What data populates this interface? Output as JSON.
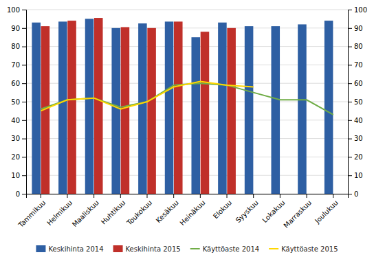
{
  "chart_data": {
    "type": "bar",
    "categories": [
      "Tammikuu",
      "Helmikuu",
      "Maaliskuu",
      "Huhtikuu",
      "Toukokuu",
      "Kesäkuu",
      "Heinäkuu",
      "Elokuu",
      "Syyskuu",
      "Lokakuu",
      "Marraskuu",
      "Joulukuu"
    ],
    "series": [
      {
        "name": "Keskihinta 2014",
        "type": "bar",
        "color": "#2E5FA3",
        "values": [
          93,
          93.5,
          95,
          90,
          92.5,
          93.5,
          85,
          93,
          91,
          91,
          92,
          94
        ]
      },
      {
        "name": "Keskihinta 2015",
        "type": "bar",
        "color": "#C0302A",
        "values": [
          91,
          94,
          95.5,
          90.5,
          90,
          93.5,
          88,
          90,
          null,
          null,
          null,
          null
        ]
      },
      {
        "name": "Käyttöaste 2014",
        "type": "line",
        "color": "#70AD47",
        "axis": "y2",
        "values": [
          46,
          51,
          52,
          47,
          50,
          59,
          60,
          59,
          55,
          51,
          51,
          43
        ]
      },
      {
        "name": "Käyttöaste 2015",
        "type": "line",
        "color": "#FFD700",
        "axis": "y2",
        "values": [
          45,
          51,
          52,
          46,
          50,
          58,
          61,
          59,
          58,
          null,
          null,
          null
        ]
      }
    ],
    "ylim": [
      0,
      100
    ],
    "yticks": [
      0,
      10,
      20,
      30,
      40,
      50,
      60,
      70,
      80,
      90,
      100
    ],
    "y2lim": [
      0,
      100
    ],
    "y2ticks": [
      0,
      10,
      20,
      30,
      40,
      50,
      60,
      70,
      80,
      90,
      100
    ],
    "grid": true,
    "legend": "bottom"
  }
}
